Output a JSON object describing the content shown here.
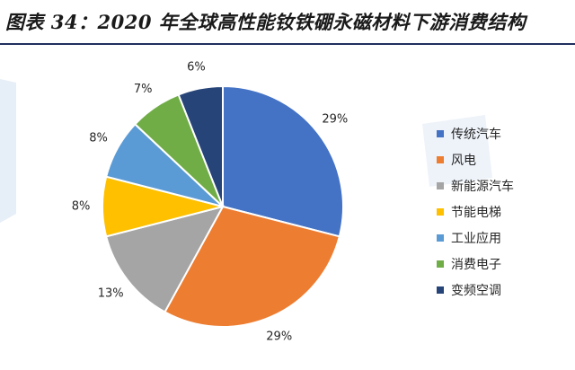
{
  "title": "图表 34：2020 年全球高性能钕铁硼永磁材料下游消费结构",
  "colors": {
    "title_rule": "#1f2f5e",
    "watermark": "#e6eef8"
  },
  "chart_data": {
    "type": "pie",
    "title": "",
    "legend_position": "right",
    "slices": [
      {
        "label": "传统汽车",
        "value": 29,
        "display": "29%",
        "color": "#4472c4"
      },
      {
        "label": "风电",
        "value": 29,
        "display": "29%",
        "color": "#ed7d31"
      },
      {
        "label": "新能源汽车",
        "value": 13,
        "display": "13%",
        "color": "#a5a5a5"
      },
      {
        "label": "节能电梯",
        "value": 8,
        "display": "8%",
        "color": "#ffc000"
      },
      {
        "label": "工业应用",
        "value": 8,
        "display": "8%",
        "color": "#5b9bd5"
      },
      {
        "label": "消费电子",
        "value": 7,
        "display": "7%",
        "color": "#70ad47"
      },
      {
        "label": "变频空调",
        "value": 6,
        "display": "6%",
        "color": "#264478"
      }
    ]
  }
}
